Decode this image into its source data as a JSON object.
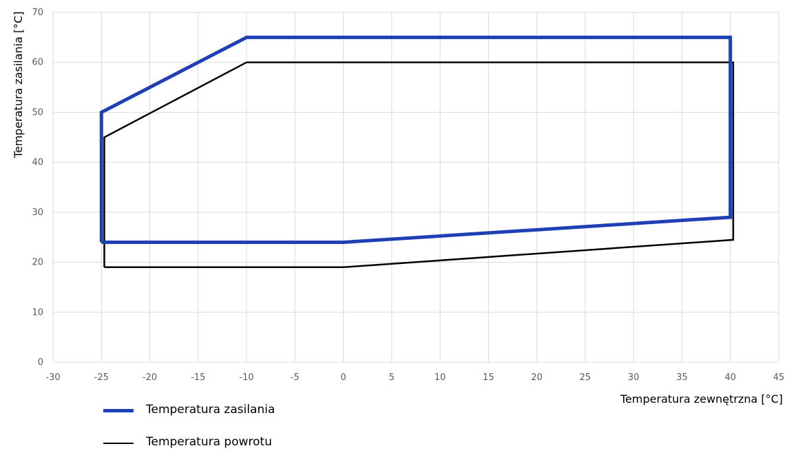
{
  "chart_data": {
    "type": "line",
    "title": "",
    "xlabel": "Temperatura zewnętrzna [°C]",
    "ylabel": "Temperatura zasilania [°C]",
    "xlim": [
      -30,
      45
    ],
    "ylim": [
      0,
      70
    ],
    "xticks": [
      "-30",
      "-25",
      "-20",
      "-15",
      "-10",
      "-5",
      "0",
      "5",
      "10",
      "15",
      "20",
      "25",
      "30",
      "35",
      "40",
      "45"
    ],
    "yticks": [
      "0",
      "10",
      "20",
      "30",
      "40",
      "50",
      "60",
      "70"
    ],
    "grid": true,
    "legend_position": "bottom-left",
    "series": [
      {
        "name": "Temperatura zasilania",
        "color": "#1f3fb5",
        "x": [
          -25,
          -25,
          -10,
          40,
          40,
          0,
          -25
        ],
        "y": [
          24,
          50,
          65,
          65,
          29,
          24,
          24
        ]
      },
      {
        "name": "Temperatura powrotu",
        "color": "#000000",
        "x": [
          -24.7,
          -24.7,
          -10,
          40.3,
          40.3,
          0,
          -24.7
        ],
        "y": [
          19,
          45,
          60,
          60,
          24.5,
          19,
          19
        ]
      }
    ]
  }
}
